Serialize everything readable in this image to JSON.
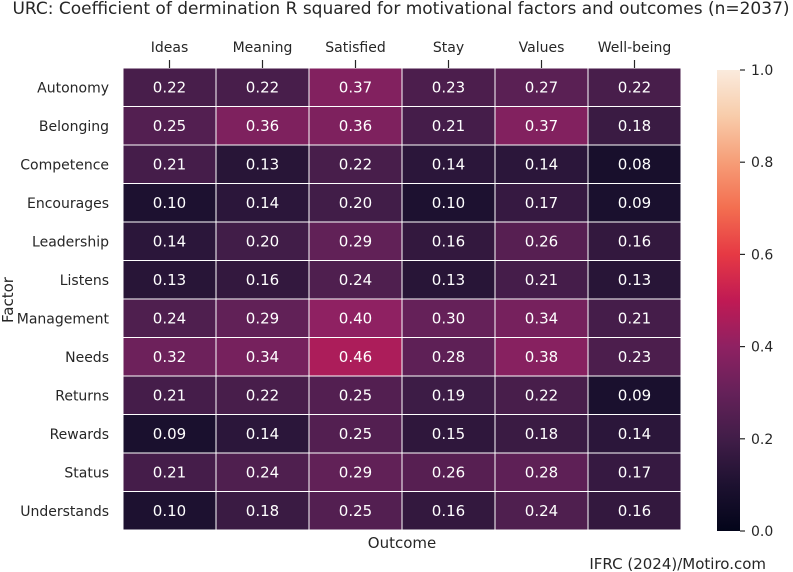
{
  "chart_data": {
    "type": "heatmap",
    "title": "URC: Coefficient of dermination R squared for motivational factors and outcomes (n=2037)",
    "xlabel": "Outcome",
    "ylabel": "Factor",
    "x_categories": [
      "Ideas",
      "Meaning",
      "Satisfied",
      "Stay",
      "Values",
      "Well-being"
    ],
    "y_categories": [
      "Autonomy",
      "Belonging",
      "Competence",
      "Encourages",
      "Leadership",
      "Listens",
      "Management",
      "Needs",
      "Returns",
      "Rewards",
      "Status",
      "Understands"
    ],
    "values": [
      [
        0.22,
        0.22,
        0.37,
        0.23,
        0.27,
        0.22
      ],
      [
        0.25,
        0.36,
        0.36,
        0.21,
        0.37,
        0.18
      ],
      [
        0.21,
        0.13,
        0.22,
        0.14,
        0.14,
        0.08
      ],
      [
        0.1,
        0.14,
        0.2,
        0.1,
        0.17,
        0.09
      ],
      [
        0.14,
        0.2,
        0.29,
        0.16,
        0.26,
        0.16
      ],
      [
        0.13,
        0.16,
        0.24,
        0.13,
        0.21,
        0.13
      ],
      [
        0.24,
        0.29,
        0.4,
        0.3,
        0.34,
        0.21
      ],
      [
        0.32,
        0.34,
        0.46,
        0.28,
        0.38,
        0.23
      ],
      [
        0.21,
        0.22,
        0.25,
        0.19,
        0.22,
        0.09
      ],
      [
        0.09,
        0.14,
        0.25,
        0.15,
        0.18,
        0.14
      ],
      [
        0.21,
        0.24,
        0.29,
        0.26,
        0.28,
        0.17
      ],
      [
        0.1,
        0.18,
        0.25,
        0.16,
        0.24,
        0.16
      ]
    ],
    "value_labels": [
      [
        "0.22",
        "0.22",
        "0.37",
        "0.23",
        "0.27",
        "0.22"
      ],
      [
        "0.25",
        "0.36",
        "0.36",
        "0.21",
        "0.37",
        "0.18"
      ],
      [
        "0.21",
        "0.13",
        "0.22",
        "0.14",
        "0.14",
        "0.08"
      ],
      [
        "0.10",
        "0.14",
        "0.20",
        "0.10",
        "0.17",
        "0.09"
      ],
      [
        "0.14",
        "0.20",
        "0.29",
        "0.16",
        "0.26",
        "0.16"
      ],
      [
        "0.13",
        "0.16",
        "0.24",
        "0.13",
        "0.21",
        "0.13"
      ],
      [
        "0.24",
        "0.29",
        "0.40",
        "0.30",
        "0.34",
        "0.21"
      ],
      [
        "0.32",
        "0.34",
        "0.46",
        "0.28",
        "0.38",
        "0.23"
      ],
      [
        "0.21",
        "0.22",
        "0.25",
        "0.19",
        "0.22",
        "0.09"
      ],
      [
        "0.09",
        "0.14",
        "0.25",
        "0.15",
        "0.18",
        "0.14"
      ],
      [
        "0.21",
        "0.24",
        "0.29",
        "0.26",
        "0.28",
        "0.17"
      ],
      [
        "0.10",
        "0.18",
        "0.25",
        "0.16",
        "0.24",
        "0.16"
      ]
    ],
    "colorbar": {
      "range": [
        0,
        1
      ],
      "ticks": [
        "0.0",
        "0.2",
        "0.4",
        "0.6",
        "0.8",
        "1.0"
      ],
      "colormap": "rocket"
    },
    "x_axis_position": "top",
    "grid": false,
    "source": "IFRC (2024)/Motiro.com"
  }
}
